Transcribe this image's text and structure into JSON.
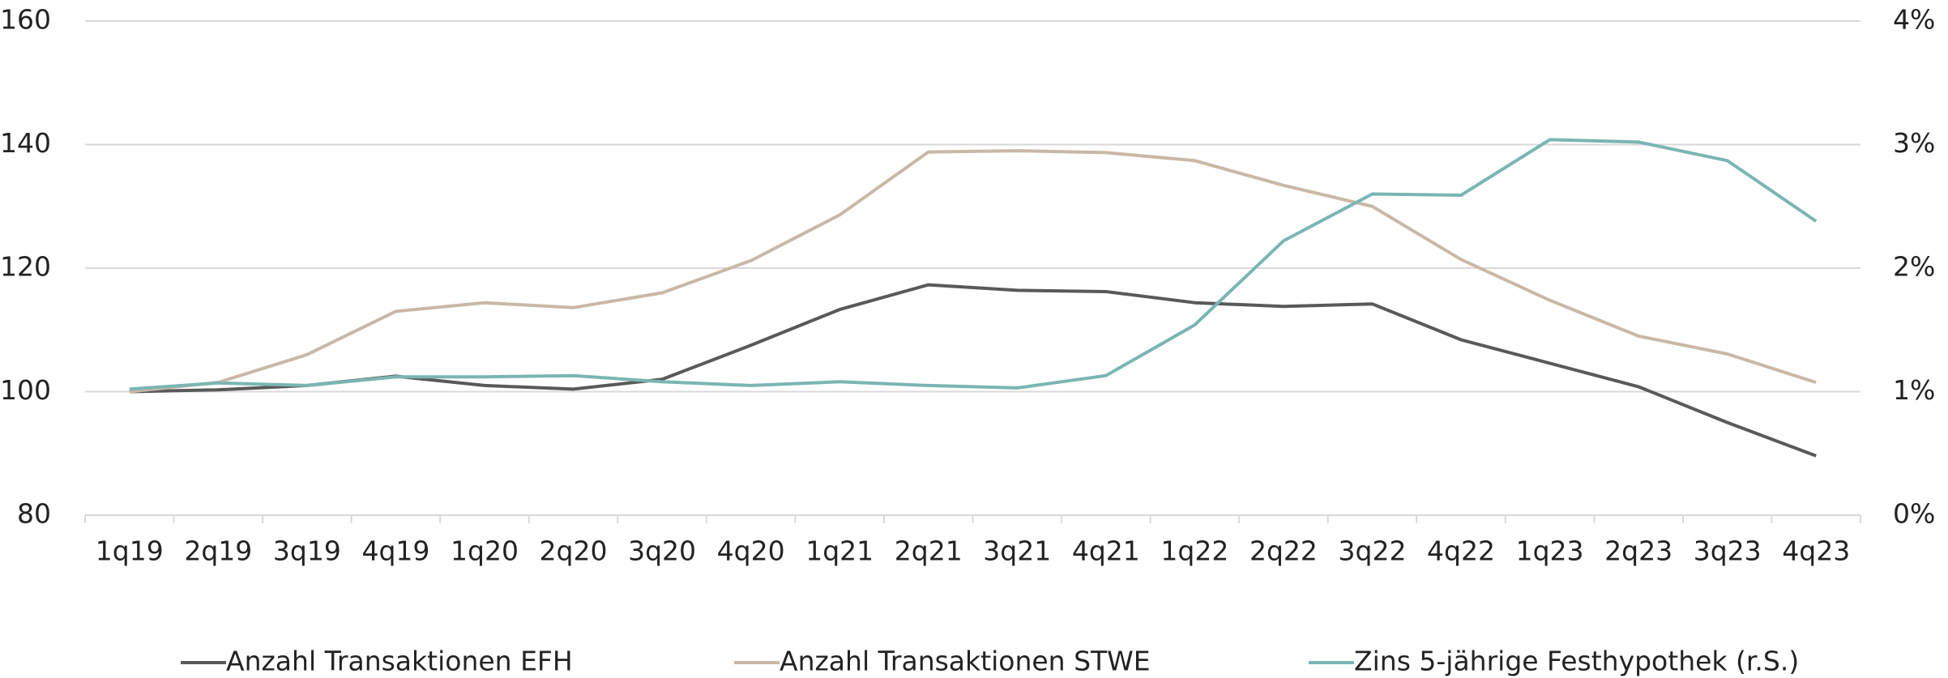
{
  "chart_data": {
    "type": "line",
    "categories": [
      "1q19",
      "2q19",
      "3q19",
      "4q19",
      "1q20",
      "2q20",
      "3q20",
      "4q20",
      "1q21",
      "2q21",
      "3q21",
      "4q21",
      "1q22",
      "2q22",
      "3q22",
      "4q22",
      "1q23",
      "2q23",
      "3q23",
      "4q23"
    ],
    "series": [
      {
        "name": "Anzahl Transaktionen EFH",
        "color": "#595959",
        "values": [
          100,
          100.3,
          101,
          102.5,
          101,
          100.4,
          102,
          107.5,
          113.3,
          117.3,
          116.4,
          116.2,
          114.4,
          113.8,
          114.2,
          108.4,
          104.6,
          100.8,
          95,
          89.6
        ]
      },
      {
        "name": "Anzahl Transaktionen STWE",
        "color": "#c9b8a6",
        "values": [
          100,
          101.5,
          106,
          113,
          114.4,
          113.6,
          116,
          121.2,
          128.6,
          138.8,
          139,
          138.7,
          137.4,
          133.4,
          130,
          121.4,
          114.8,
          109,
          106.1,
          101.5
        ]
      },
      {
        "name": "Zins 5-jährige Festhypothek (r.S.)",
        "color": "#7ab5b3",
        "axis": "y2",
        "values": [
          1.02,
          1.07,
          1.05,
          1.12,
          1.12,
          1.13,
          1.08,
          1.05,
          1.08,
          1.05,
          1.03,
          1.13,
          1.54,
          2.22,
          2.6,
          2.59,
          3.04,
          3.02,
          2.87,
          2.38
        ]
      }
    ],
    "ylim": [
      80,
      160
    ],
    "yticks": [
      80,
      100,
      120,
      140,
      160
    ],
    "y2lim": [
      0,
      4
    ],
    "y2ticks": [
      {
        "value": 0,
        "label": "0%"
      },
      {
        "value": 1,
        "label": "1%"
      },
      {
        "value": 2,
        "label": "2%"
      },
      {
        "value": 3,
        "label": "3%"
      },
      {
        "value": 4,
        "label": "4%"
      }
    ],
    "grid": true,
    "legend": "bottom"
  }
}
